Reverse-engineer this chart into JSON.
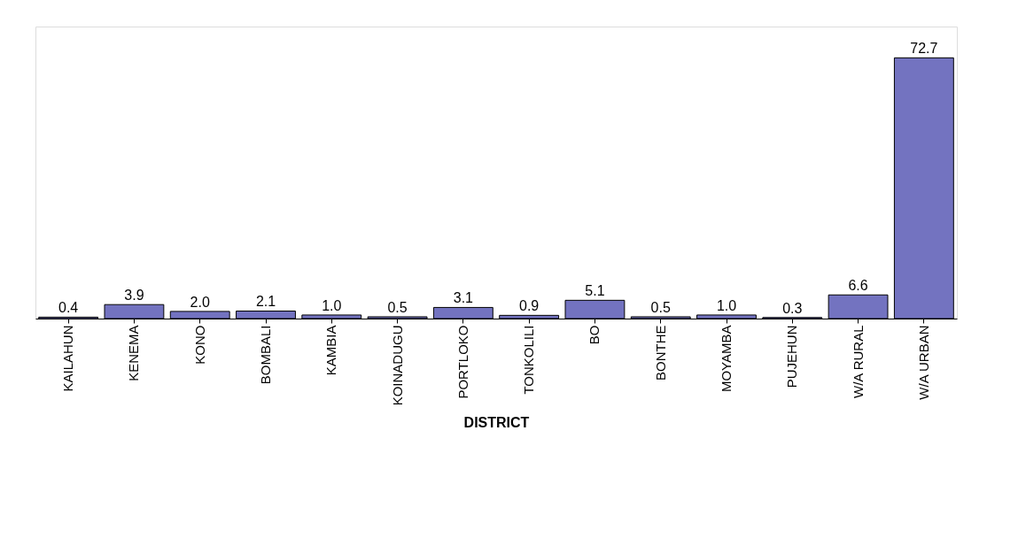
{
  "chart_data": {
    "type": "bar",
    "xlabel": "DISTRICT",
    "categories": [
      "KAILAHUN",
      "KENEMA",
      "KONO",
      "BOMBALI",
      "KAMBIA",
      "KOINADUGU",
      "PORTLOKO",
      "TONKOLILI",
      "BO",
      "BONTHE",
      "MOYAMBA",
      "PUJEHUN",
      "W/A RURAL",
      "W/A URBAN"
    ],
    "values": [
      0.4,
      3.9,
      2.0,
      2.1,
      1.0,
      0.5,
      3.1,
      0.9,
      5.1,
      0.5,
      1.0,
      0.3,
      6.6,
      72.7
    ],
    "value_labels": [
      "0.4",
      "3.9",
      "2.0",
      "2.1",
      "1.0",
      "0.5",
      "3.1",
      "0.9",
      "5.1",
      "0.5",
      "1.0",
      "0.3",
      "6.6",
      "72.7"
    ],
    "color": "#7373c0"
  }
}
